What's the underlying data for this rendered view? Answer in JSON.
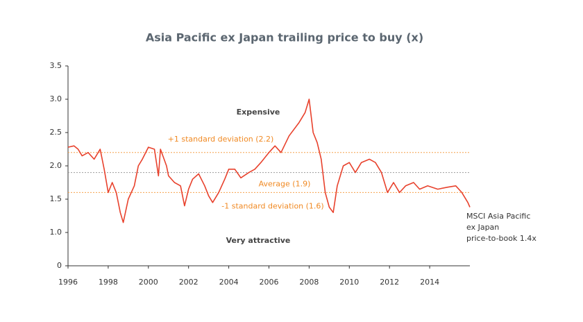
{
  "chart_data": {
    "type": "line",
    "title": "Asia Pacific ex Japan trailing price to buy (x)",
    "xlim": [
      1996,
      2016
    ],
    "xticks": [
      1996,
      1998,
      2000,
      2002,
      2004,
      2006,
      2008,
      2010,
      2012,
      2014
    ],
    "ylim": [
      0.5,
      3.5
    ],
    "yticks": [
      {
        "value": 0.5,
        "label": "0"
      },
      {
        "value": 1.0,
        "label": "1.0"
      },
      {
        "value": 1.5,
        "label": "1.5"
      },
      {
        "value": 2.0,
        "label": "2.0"
      },
      {
        "value": 2.5,
        "label": "2.5"
      },
      {
        "value": 3.0,
        "label": "3.0"
      },
      {
        "value": 3.5,
        "label": "3.5"
      }
    ],
    "series": [
      {
        "color": "#e8412c",
        "x": [
          1996.0,
          1996.3,
          1996.5,
          1996.7,
          1997.0,
          1997.3,
          1997.6,
          1997.8,
          1998.0,
          1998.2,
          1998.4,
          1998.6,
          1998.75,
          1999.0,
          1999.3,
          1999.5,
          1999.7,
          2000.0,
          2000.3,
          2000.5,
          2000.6,
          2000.9,
          2001.0,
          2001.3,
          2001.6,
          2001.8,
          2002.0,
          2002.2,
          2002.5,
          2002.8,
          2003.0,
          2003.2,
          2003.5,
          2003.8,
          2004.0,
          2004.3,
          2004.6,
          2005.0,
          2005.3,
          2005.6,
          2006.0,
          2006.3,
          2006.6,
          2007.0,
          2007.5,
          2007.8,
          2008.0,
          2008.2,
          2008.4,
          2008.6,
          2008.8,
          2009.0,
          2009.2,
          2009.4,
          2009.7,
          2010.0,
          2010.3,
          2010.6,
          2011.0,
          2011.3,
          2011.6,
          2011.9,
          2012.2,
          2012.5,
          2012.8,
          2013.2,
          2013.5,
          2013.9,
          2014.4,
          2014.9,
          2015.3,
          2015.6,
          2015.9,
          2016.0
        ],
        "values": [
          2.28,
          2.3,
          2.25,
          2.15,
          2.2,
          2.1,
          2.25,
          1.95,
          1.6,
          1.75,
          1.6,
          1.3,
          1.15,
          1.5,
          1.7,
          2.0,
          2.1,
          2.28,
          2.25,
          1.85,
          2.25,
          2.0,
          1.85,
          1.75,
          1.7,
          1.4,
          1.65,
          1.8,
          1.88,
          1.7,
          1.55,
          1.45,
          1.6,
          1.8,
          1.95,
          1.95,
          1.82,
          1.9,
          1.95,
          2.05,
          2.2,
          2.3,
          2.2,
          2.45,
          2.65,
          2.8,
          3.0,
          2.5,
          2.35,
          2.1,
          1.6,
          1.38,
          1.3,
          1.7,
          2.0,
          2.05,
          1.9,
          2.05,
          2.1,
          2.05,
          1.9,
          1.6,
          1.75,
          1.6,
          1.7,
          1.75,
          1.65,
          1.7,
          1.65,
          1.68,
          1.7,
          1.6,
          1.45,
          1.38
        ]
      }
    ],
    "reference_lines": [
      {
        "label": "+1 standard deviation (2.2)",
        "value": 2.2,
        "color": "#f5a04a"
      },
      {
        "label": "Average (1.9)",
        "value": 1.9,
        "color": "#999999"
      },
      {
        "label": "-1 standard deviation (1.6)",
        "value": 1.6,
        "color": "#f5a04a"
      }
    ],
    "annotations": [
      "Expensive",
      "Very attractive"
    ],
    "end_label": [
      "MSCI Asia Pacific",
      "ex Japan",
      "price-to-book 1.4x"
    ]
  }
}
